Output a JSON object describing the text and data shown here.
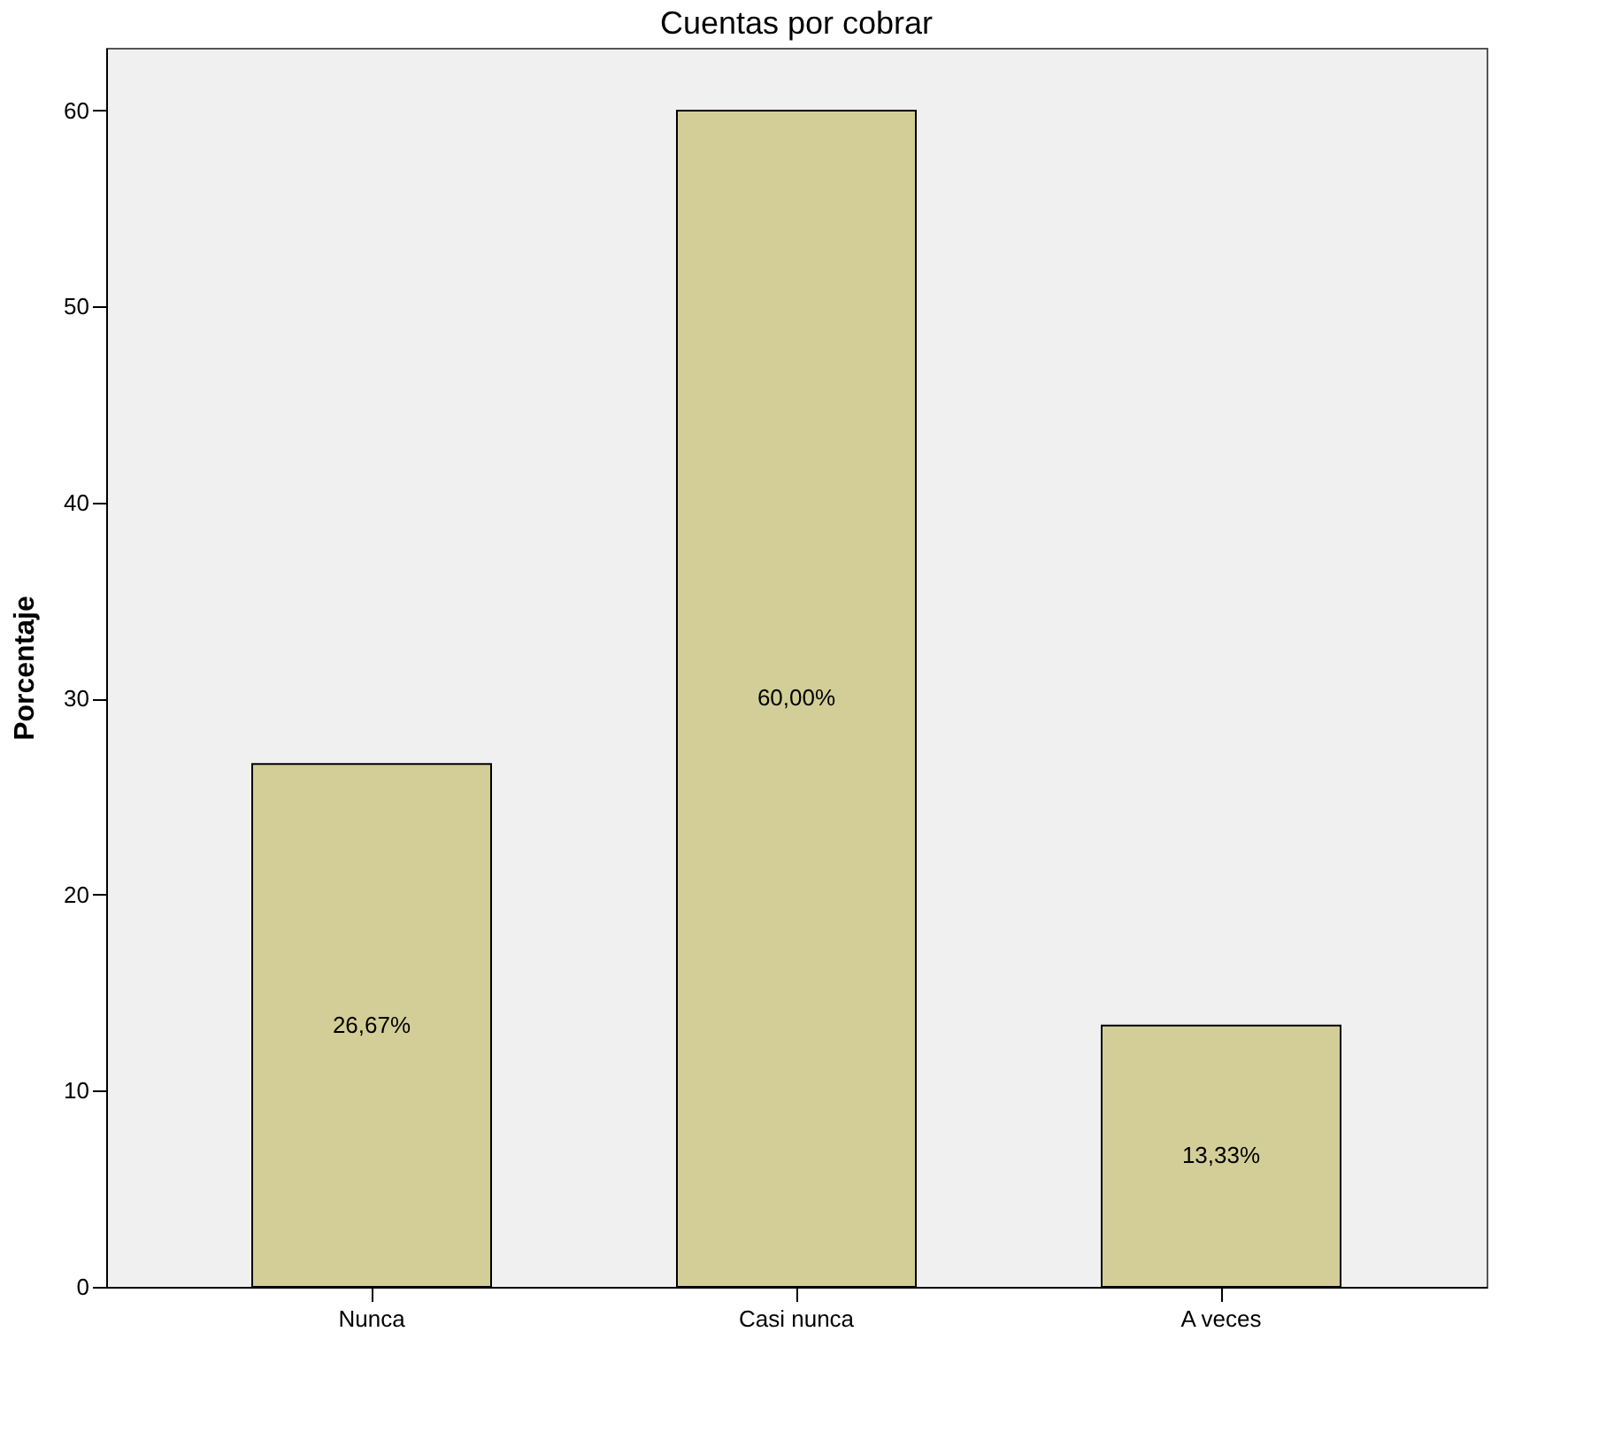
{
  "chart_data": {
    "type": "bar",
    "title": "Cuentas por cobrar",
    "ylabel": "Porcentaje",
    "categories": [
      "Nunca",
      "Casi nunca",
      "A veces"
    ],
    "values": [
      26.67,
      60.0,
      13.33
    ],
    "value_labels": [
      "26,67%",
      "60,00%",
      "13,33%"
    ],
    "color": "#d3ce97",
    "ylim": [
      0,
      63.2
    ],
    "yticks": [
      0,
      10,
      20,
      30,
      40,
      50,
      60
    ],
    "grid": false
  }
}
